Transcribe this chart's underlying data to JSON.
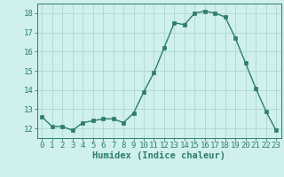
{
  "x": [
    0,
    1,
    2,
    3,
    4,
    5,
    6,
    7,
    8,
    9,
    10,
    11,
    12,
    13,
    14,
    15,
    16,
    17,
    18,
    19,
    20,
    21,
    22,
    23
  ],
  "y": [
    12.6,
    12.1,
    12.1,
    11.9,
    12.3,
    12.4,
    12.5,
    12.5,
    12.3,
    12.8,
    13.9,
    14.9,
    16.2,
    17.5,
    17.4,
    18.0,
    18.1,
    18.0,
    17.8,
    16.7,
    15.4,
    14.1,
    12.9,
    11.9
  ],
  "line_color": "#2e7d6e",
  "marker": "s",
  "markersize": 2.5,
  "linewidth": 1.0,
  "bg_color": "#cff0ec",
  "grid_color": "#aed8d2",
  "xlabel": "Humidex (Indice chaleur)",
  "xlim": [
    -0.5,
    23.5
  ],
  "ylim": [
    11.5,
    18.5
  ],
  "yticks": [
    12,
    13,
    14,
    15,
    16,
    17,
    18
  ],
  "xticks": [
    0,
    1,
    2,
    3,
    4,
    5,
    6,
    7,
    8,
    9,
    10,
    11,
    12,
    13,
    14,
    15,
    16,
    17,
    18,
    19,
    20,
    21,
    22,
    23
  ],
  "tick_fontsize": 6.5,
  "label_fontsize": 7.5
}
